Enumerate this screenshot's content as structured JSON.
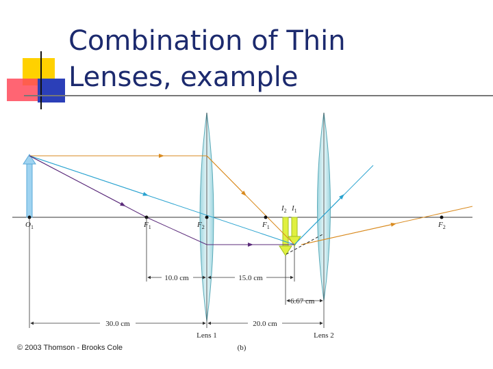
{
  "title": {
    "line1": "Combination of Thin",
    "line2": "Lenses, example"
  },
  "points": [
    {
      "letter": "O",
      "sub": "1"
    },
    {
      "letter": "F",
      "sub": "1"
    },
    {
      "letter": "F",
      "sub": "2"
    },
    {
      "letter": "F",
      "sub": "1"
    },
    {
      "letter": "I",
      "sub": "2"
    },
    {
      "letter": "I",
      "sub": "1"
    },
    {
      "letter": "F",
      "sub": "2"
    }
  ],
  "distances": [
    "10.0 cm",
    "15.0 cm",
    "6.67 cm",
    "30.0 cm",
    "20.0 cm"
  ],
  "lenses": [
    "Lens 1",
    "Lens 2"
  ],
  "panel": "(b)",
  "credit": "© 2003 Thomson - Brooks Cole"
}
